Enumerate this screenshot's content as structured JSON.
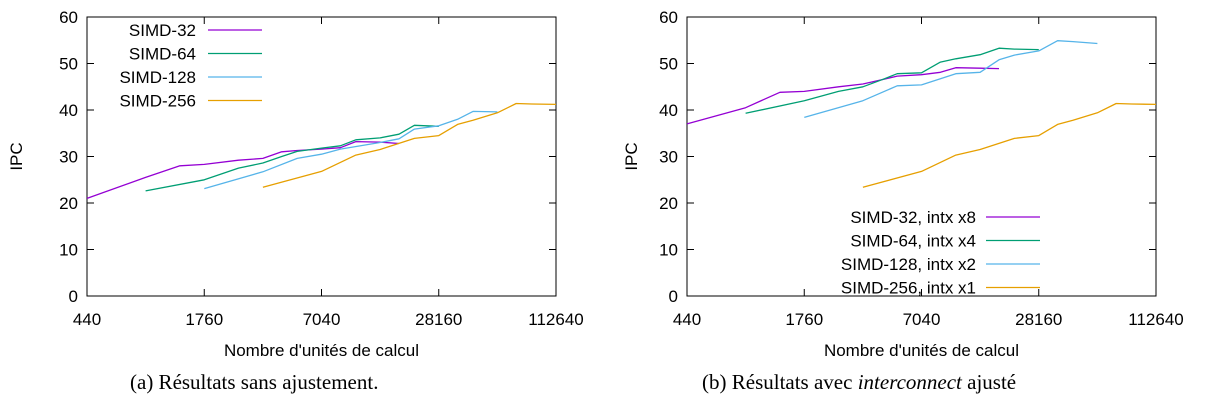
{
  "chart_data": [
    {
      "type": "line",
      "xlabel": "Nombre d'unités de calcul",
      "ylabel": "IPC",
      "x_scale": "log",
      "x_ticks": [
        "440",
        "1760",
        "7040",
        "28160",
        "112640"
      ],
      "y_ticks": [
        "0",
        "10",
        "20",
        "30",
        "40",
        "50",
        "60"
      ],
      "xlim": [
        440,
        112640
      ],
      "ylim": [
        0,
        60
      ],
      "legend_position": "top-left",
      "series": [
        {
          "name": "SIMD-32",
          "color": "#9400d3",
          "x": [
            440,
            880,
            1320,
            1760,
            2640,
            3520,
            4400,
            5280,
            7040,
            8800,
            10560,
            14080,
            17600
          ],
          "y": [
            21,
            25.5,
            28,
            28.3,
            29.2,
            29.6,
            31,
            31.3,
            31.6,
            31.9,
            33.2,
            33.1,
            32.8
          ]
        },
        {
          "name": "SIMD-64",
          "color": "#009e73",
          "x": [
            880,
            1760,
            2640,
            3520,
            4400,
            5280,
            7040,
            8800,
            10560,
            14080,
            17600,
            21120,
            28160
          ],
          "y": [
            22.6,
            25,
            27.5,
            28.6,
            30,
            31.1,
            31.8,
            32.3,
            33.6,
            34,
            34.8,
            36.7,
            36.5
          ]
        },
        {
          "name": "SIMD-128",
          "color": "#56b4e9",
          "x": [
            1760,
            3520,
            5280,
            7040,
            8800,
            14080,
            17600,
            21120,
            28160,
            35200,
            42240,
            56320
          ],
          "y": [
            23.1,
            26.7,
            29.6,
            30.5,
            31.6,
            33,
            33.8,
            35.9,
            36.6,
            38,
            39.7,
            39.6
          ]
        },
        {
          "name": "SIMD-256",
          "color": "#e69f00",
          "x": [
            3520,
            7040,
            10560,
            14080,
            21120,
            28160,
            35200,
            42240,
            56320,
            70400,
            84480,
            112640
          ],
          "y": [
            23.4,
            26.8,
            30.3,
            31.5,
            33.9,
            34.5,
            36.9,
            37.8,
            39.4,
            41.4,
            41.3,
            41.2
          ]
        }
      ]
    },
    {
      "type": "line",
      "xlabel": "Nombre d'unités de calcul",
      "ylabel": "IPC",
      "x_scale": "log",
      "x_ticks": [
        "440",
        "1760",
        "7040",
        "28160",
        "112640"
      ],
      "y_ticks": [
        "0",
        "10",
        "20",
        "30",
        "40",
        "50",
        "60"
      ],
      "xlim": [
        440,
        112640
      ],
      "ylim": [
        0,
        60
      ],
      "legend_position": "bottom-center",
      "series": [
        {
          "name": "SIMD-32, intx x8",
          "color": "#9400d3",
          "x": [
            440,
            880,
            1320,
            1760,
            2640,
            3520,
            4400,
            5280,
            7040,
            8800,
            10560,
            14080,
            17600
          ],
          "y": [
            37,
            40.5,
            43.8,
            44,
            45,
            45.6,
            46.5,
            47.3,
            47.6,
            48.1,
            49.1,
            49,
            48.9
          ]
        },
        {
          "name": "SIMD-64, intx x4",
          "color": "#009e73",
          "x": [
            880,
            1760,
            2640,
            3520,
            4400,
            5280,
            7040,
            8800,
            10560,
            14080,
            17600,
            21120,
            28160
          ],
          "y": [
            39.3,
            42,
            44,
            45,
            46.5,
            47.8,
            48,
            50.3,
            51,
            51.9,
            53.3,
            53.1,
            53
          ]
        },
        {
          "name": "SIMD-128, intx x2",
          "color": "#56b4e9",
          "x": [
            1760,
            3520,
            5280,
            7040,
            8800,
            10560,
            14080,
            17600,
            21120,
            28160,
            35200,
            42240,
            56320
          ],
          "y": [
            38.4,
            42,
            45.2,
            45.4,
            46.7,
            47.8,
            48.1,
            50.8,
            51.8,
            52.7,
            54.9,
            54.7,
            54.3
          ]
        },
        {
          "name": "SIMD-256, intx x1",
          "color": "#e69f00",
          "x": [
            3520,
            7040,
            10560,
            14080,
            21120,
            28160,
            35200,
            42240,
            56320,
            70400,
            84480,
            112640
          ],
          "y": [
            23.4,
            26.8,
            30.3,
            31.5,
            33.9,
            34.5,
            36.9,
            37.8,
            39.4,
            41.4,
            41.3,
            41.2
          ]
        }
      ]
    }
  ],
  "captions": {
    "a": "(a) Résultats sans ajustement.",
    "b_prefix": "(b) Résultats avec ",
    "b_em": "interconnect",
    "b_suffix": " ajusté"
  }
}
